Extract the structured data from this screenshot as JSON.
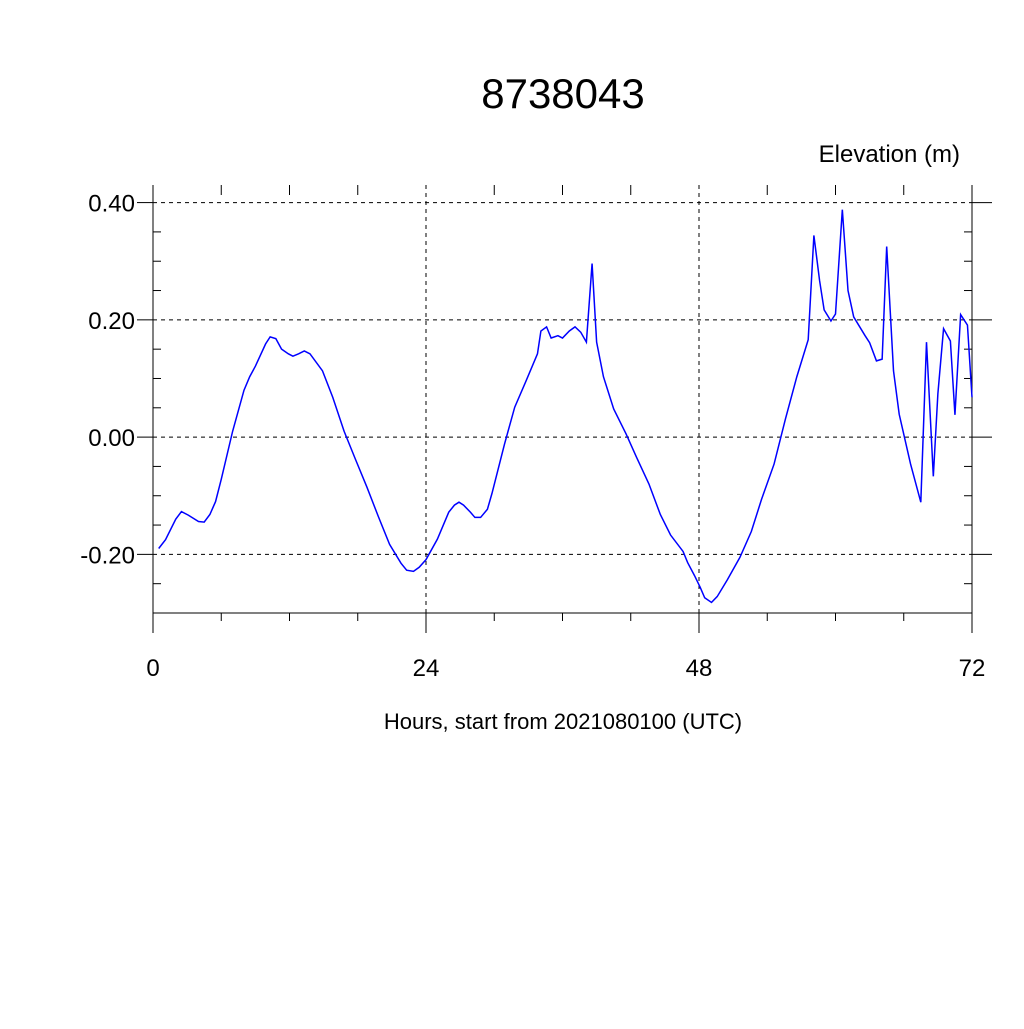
{
  "chart_data": {
    "type": "line",
    "title": "8738043",
    "y_label": "Elevation (m)",
    "x_label": "Hours, start from 2021080100 (UTC)",
    "x": [
      0.5,
      1.1,
      2.0,
      2.5,
      3.1,
      4.0,
      4.5,
      5.0,
      5.5,
      6.0,
      7.0,
      8.0,
      8.5,
      9.0,
      9.9,
      10.3,
      10.8,
      11.3,
      11.9,
      12.3,
      12.8,
      13.3,
      13.8,
      14.9,
      15.8,
      16.8,
      17.8,
      18.8,
      19.8,
      20.8,
      21.8,
      22.3,
      22.9,
      23.4,
      24.0,
      25.0,
      26.0,
      26.5,
      26.9,
      27.3,
      27.9,
      28.3,
      28.8,
      29.4,
      29.8,
      30.9,
      31.8,
      32.8,
      33.8,
      34.1,
      34.6,
      35.0,
      35.6,
      36.0,
      36.6,
      37.1,
      37.6,
      38.1,
      38.6,
      39.0,
      39.6,
      40.5,
      41.6,
      42.5,
      43.6,
      44.6,
      45.5,
      46.6,
      47.0,
      47.6,
      48.1,
      48.5,
      49.1,
      49.6,
      50.5,
      51.6,
      52.6,
      53.5,
      54.6,
      55.6,
      56.6,
      57.6,
      58.1,
      58.6,
      59.0,
      59.6,
      60.0,
      60.6,
      61.1,
      61.6,
      62.6,
      63.0,
      63.6,
      64.1,
      64.5,
      65.1,
      65.6,
      66.6,
      67.5,
      68.0,
      68.6,
      69.0,
      69.5,
      70.1,
      70.5,
      71.0,
      71.6,
      72.0
    ],
    "series": [
      {
        "name": "8738043",
        "color": "#0000ff",
        "values": [
          -0.19,
          -0.175,
          -0.14,
          -0.127,
          -0.133,
          -0.144,
          -0.145,
          -0.132,
          -0.11,
          -0.072,
          0.01,
          0.08,
          0.103,
          0.121,
          0.159,
          0.171,
          0.168,
          0.15,
          0.142,
          0.138,
          0.142,
          0.147,
          0.142,
          0.113,
          0.068,
          0.01,
          -0.038,
          -0.085,
          -0.135,
          -0.183,
          -0.215,
          -0.227,
          -0.229,
          -0.222,
          -0.209,
          -0.174,
          -0.128,
          -0.116,
          -0.111,
          -0.116,
          -0.128,
          -0.137,
          -0.137,
          -0.123,
          -0.096,
          -0.012,
          0.051,
          0.096,
          0.142,
          0.181,
          0.188,
          0.169,
          0.173,
          0.169,
          0.181,
          0.188,
          0.179,
          0.162,
          0.296,
          0.162,
          0.103,
          0.048,
          0.005,
          -0.034,
          -0.08,
          -0.132,
          -0.167,
          -0.195,
          -0.214,
          -0.236,
          -0.256,
          -0.274,
          -0.282,
          -0.272,
          -0.243,
          -0.205,
          -0.161,
          -0.106,
          -0.046,
          0.031,
          0.103,
          0.166,
          0.344,
          0.267,
          0.217,
          0.198,
          0.21,
          0.388,
          0.25,
          0.205,
          0.173,
          0.161,
          0.13,
          0.133,
          0.325,
          0.113,
          0.039,
          -0.046,
          -0.111,
          0.162,
          -0.067,
          0.074,
          0.185,
          0.164,
          0.038,
          0.209,
          0.191,
          0.068
        ]
      }
    ],
    "xlim": [
      0,
      72
    ],
    "ylim": [
      -0.3,
      0.43
    ],
    "xticks": [
      0,
      24,
      48,
      72
    ],
    "yticks": [
      {
        "value": -0.2,
        "label": "-0.20"
      },
      {
        "value": 0,
        "label": "0.00"
      },
      {
        "value": 0.2,
        "label": "0.20"
      },
      {
        "value": 0.4,
        "label": "0.40"
      }
    ],
    "xminorticks": [
      6,
      12,
      18,
      30,
      36,
      42,
      54,
      60,
      66
    ],
    "yminorticks": [
      -0.25,
      -0.15,
      -0.1,
      -0.05,
      0.05,
      0.1,
      0.15,
      0.25,
      0.3,
      0.35
    ],
    "grid": true
  }
}
